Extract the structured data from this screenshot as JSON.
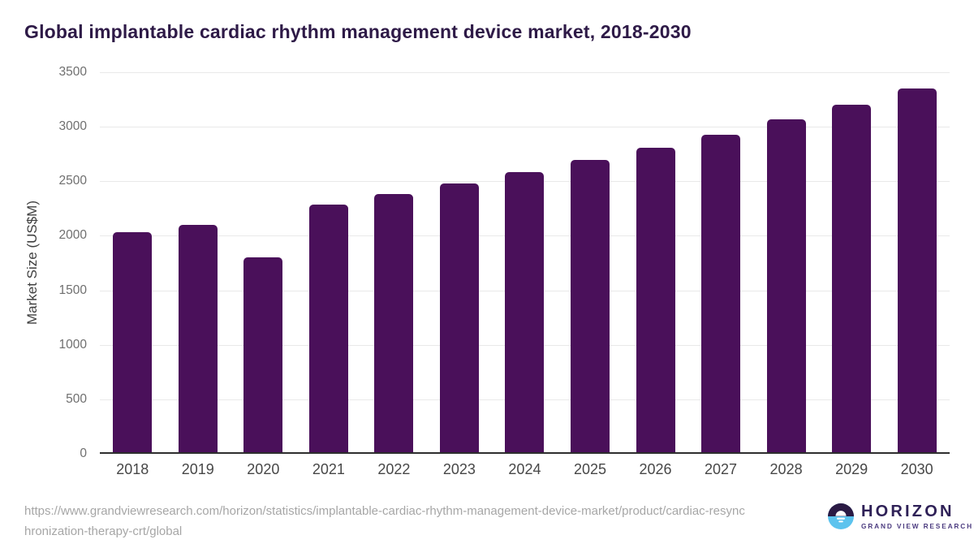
{
  "page": {
    "source_url": "https://www.grandviewresearch.com/horizon/statistics/implantable-cardiac-rhythm-management-device-market/product/cardiac-resynchronization-therapy-crt/global"
  },
  "branding": {
    "logo_title": "HORIZON",
    "logo_subtitle": "GRAND VIEW RESEARCH",
    "logo_icon": "horizon-sun-icon"
  },
  "theme": {
    "bar_color": "#4A105A",
    "title_color": "#2E1A47",
    "grid_color": "#E9E9E9",
    "axis_color": "#2E2E2E",
    "ytick_color": "#6F6F6F",
    "xtick_color": "#474747",
    "url_color": "#A6A6A6",
    "logo_top": "#2B1A44",
    "logo_bottom": "#5CC3EE",
    "logo_text": "#2F2157",
    "logo_subtext": "#4C3C80"
  },
  "chart_data": {
    "type": "bar",
    "title": "Global implantable cardiac rhythm management device market, 2018-2030",
    "categories": [
      "2018",
      "2019",
      "2020",
      "2021",
      "2022",
      "2023",
      "2024",
      "2025",
      "2026",
      "2027",
      "2028",
      "2029",
      "2030"
    ],
    "values": [
      2015,
      2085,
      1785,
      2275,
      2370,
      2465,
      2570,
      2680,
      2795,
      2910,
      3050,
      3190,
      3340
    ],
    "xlabel": "",
    "ylabel": "Market Size (US$M)",
    "ylim": [
      0,
      3500
    ],
    "ytick_step": 500,
    "ytick_labels": [
      "0",
      "500",
      "1000",
      "1500",
      "2000",
      "2500",
      "3000",
      "3500"
    ],
    "grid": true,
    "legend": false,
    "bar_color": "#4A105A"
  }
}
